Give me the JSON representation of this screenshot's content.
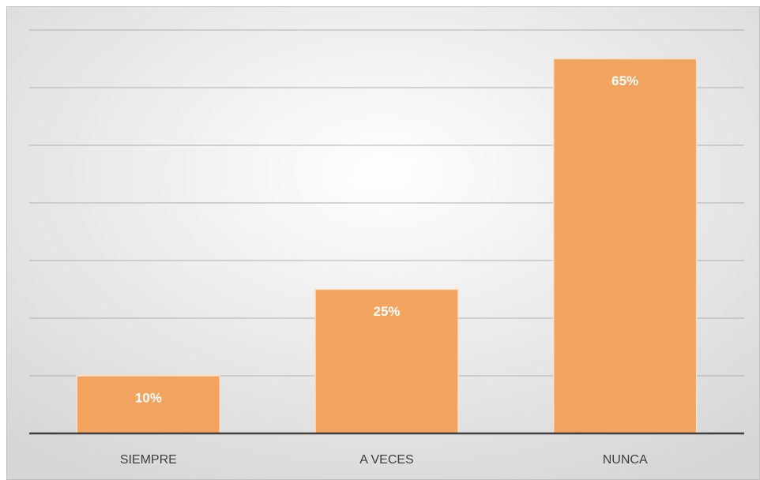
{
  "chart_data": {
    "type": "bar",
    "categories": [
      "SIEMPRE",
      "A VECES",
      "NUNCA"
    ],
    "values": [
      10,
      25,
      65
    ],
    "value_labels": [
      "10%",
      "25%",
      "65%"
    ],
    "color": "#f2a35e",
    "ylim": [
      0,
      70
    ],
    "yticks": [
      0,
      10,
      20,
      30,
      40,
      50,
      60,
      70
    ],
    "grid": true
  }
}
